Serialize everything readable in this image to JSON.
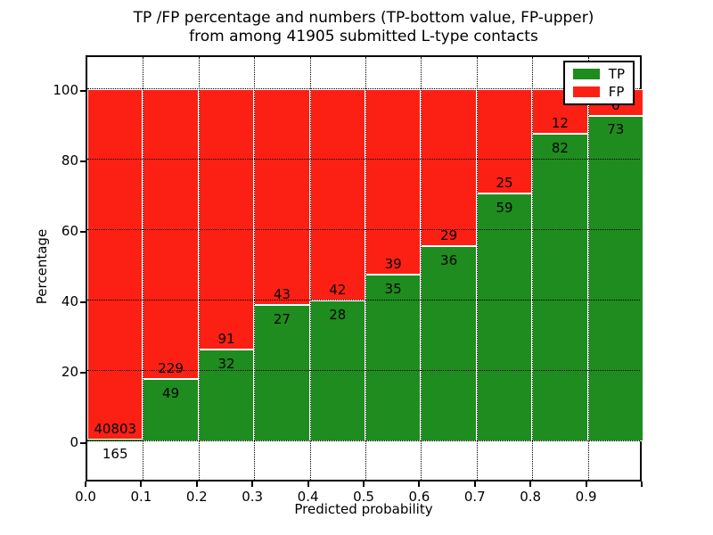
{
  "figure": {
    "title_line1": "TP /FP percentage and numbers (TP-bottom value, FP-upper)",
    "title_line2": "from among 41905 submitted L-type contacts",
    "xlabel": "Predicted probability",
    "ylabel": "Percentage"
  },
  "chart_data": {
    "type": "bar",
    "variant": "stacked-percentage",
    "title": "TP /FP percentage and numbers (TP-bottom value, FP-upper) from among 41905 submitted L-type contacts",
    "xlabel": "Predicted probability",
    "ylabel": "Percentage",
    "total_contacts": 41905,
    "xlim": [
      0.0,
      1.0
    ],
    "ylim": [
      -11,
      110
    ],
    "x_tick_labels": [
      "0.0",
      "0.1",
      "0.2",
      "0.3",
      "0.4",
      "0.5",
      "0.6",
      "0.7",
      "0.8",
      "0.9"
    ],
    "y_tick_values": [
      0,
      20,
      40,
      60,
      80,
      100
    ],
    "grid": "dotted",
    "bin_width": 0.1,
    "bins": [
      {
        "range": "0.0-0.1",
        "tp": 165,
        "fp": 40803,
        "tp_percent": 0.4
      },
      {
        "range": "0.1-0.2",
        "tp": 49,
        "fp": 229,
        "tp_percent": 17.63
      },
      {
        "range": "0.2-0.3",
        "tp": 32,
        "fp": 91,
        "tp_percent": 26.02
      },
      {
        "range": "0.3-0.4",
        "tp": 27,
        "fp": 43,
        "tp_percent": 38.57
      },
      {
        "range": "0.4-0.5",
        "tp": 28,
        "fp": 42,
        "tp_percent": 40.0
      },
      {
        "range": "0.5-0.6",
        "tp": 35,
        "fp": 39,
        "tp_percent": 47.3
      },
      {
        "range": "0.6-0.7",
        "tp": 36,
        "fp": 29,
        "tp_percent": 55.38
      },
      {
        "range": "0.7-0.8",
        "tp": 59,
        "fp": 25,
        "tp_percent": 70.24
      },
      {
        "range": "0.8-0.9",
        "tp": 82,
        "fp": 12,
        "tp_percent": 87.23
      },
      {
        "range": "0.9-1.0",
        "tp": 73,
        "fp": 6,
        "tp_percent": 92.41
      }
    ],
    "series": [
      {
        "name": "TP",
        "color": "#1f8c1f",
        "values": [
          165,
          49,
          32,
          27,
          28,
          35,
          36,
          59,
          82,
          73
        ]
      },
      {
        "name": "FP",
        "color": "#fc2014",
        "values": [
          40803,
          229,
          91,
          43,
          42,
          39,
          29,
          25,
          12,
          6
        ]
      }
    ],
    "legend": {
      "position": "upper right",
      "entries": [
        {
          "label": "TP",
          "color": "#1f8c1f"
        },
        {
          "label": "FP",
          "color": "#fc2014"
        }
      ]
    },
    "colors": {
      "tp": "#1f8c1f",
      "fp": "#fc2014",
      "edge": "#ffffff",
      "grid": "#000000"
    }
  }
}
